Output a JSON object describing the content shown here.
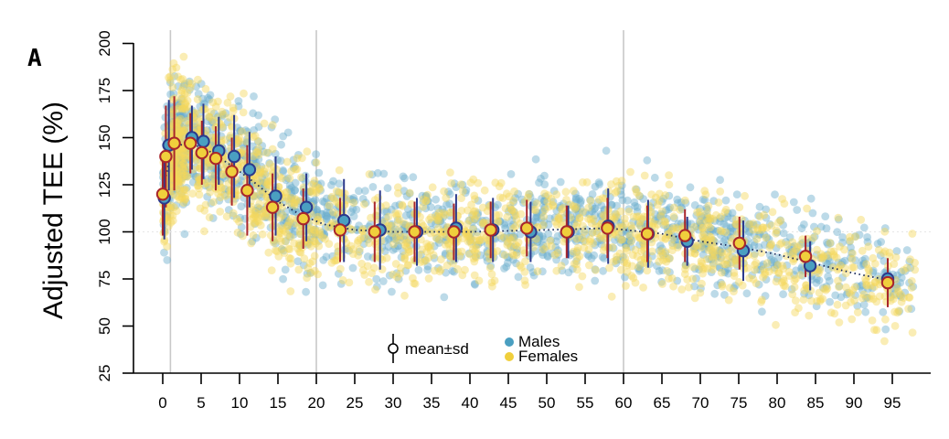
{
  "chart_data": {
    "type": "scatter",
    "panel_label": "A",
    "title": "",
    "xlabel": "",
    "ylabel": "Adjusted TEE (%)",
    "xlim": [
      -1,
      100
    ],
    "ylim": [
      25,
      205
    ],
    "x_ticks": [
      0,
      5,
      10,
      15,
      20,
      25,
      30,
      35,
      40,
      45,
      50,
      55,
      60,
      65,
      70,
      75,
      80,
      85,
      90,
      95
    ],
    "y_ticks": [
      25,
      50,
      75,
      100,
      125,
      150,
      175,
      200
    ],
    "reference_vlines": [
      1,
      20,
      60
    ],
    "reference_hline": 100,
    "legend": {
      "placement": "bottom-center",
      "mean_sd_label": "mean±sd",
      "entries": [
        {
          "name": "Males",
          "color": "#4a9fc1"
        },
        {
          "name": "Females",
          "color": "#f0cf3c"
        }
      ]
    },
    "colors": {
      "male_point": "#6aaecd",
      "female_point": "#f3d65a",
      "male_marker": "#4a9fc1",
      "male_edge": "#2c3a8c",
      "female_marker": "#f0cf3c",
      "female_edge": "#a8262c",
      "trend": "#1a2a5a",
      "ref_line": "#c8c8c8"
    },
    "trend_curve": [
      {
        "x": 0,
        "y": 120
      },
      {
        "x": 1,
        "y": 142
      },
      {
        "x": 3,
        "y": 148
      },
      {
        "x": 6,
        "y": 143
      },
      {
        "x": 9,
        "y": 135
      },
      {
        "x": 12,
        "y": 126
      },
      {
        "x": 15,
        "y": 116
      },
      {
        "x": 18,
        "y": 109
      },
      {
        "x": 21,
        "y": 104
      },
      {
        "x": 25,
        "y": 101
      },
      {
        "x": 30,
        "y": 100
      },
      {
        "x": 40,
        "y": 100
      },
      {
        "x": 50,
        "y": 101
      },
      {
        "x": 58,
        "y": 102
      },
      {
        "x": 65,
        "y": 99
      },
      {
        "x": 70,
        "y": 95
      },
      {
        "x": 75,
        "y": 92
      },
      {
        "x": 80,
        "y": 88
      },
      {
        "x": 85,
        "y": 83
      },
      {
        "x": 90,
        "y": 78
      },
      {
        "x": 95,
        "y": 74
      }
    ],
    "series": [
      {
        "name": "Males",
        "points": [
          {
            "x": 0.2,
            "y": 118,
            "sd": 22
          },
          {
            "x": 0.8,
            "y": 146,
            "sd": 24
          },
          {
            "x": 3.8,
            "y": 150,
            "sd": 17
          },
          {
            "x": 5.3,
            "y": 148,
            "sd": 20
          },
          {
            "x": 7.3,
            "y": 143,
            "sd": 18
          },
          {
            "x": 9.3,
            "y": 140,
            "sd": 22
          },
          {
            "x": 11.3,
            "y": 133,
            "sd": 20
          },
          {
            "x": 14.7,
            "y": 119,
            "sd": 21
          },
          {
            "x": 18.7,
            "y": 113,
            "sd": 18
          },
          {
            "x": 23.6,
            "y": 106,
            "sd": 22
          },
          {
            "x": 28.3,
            "y": 101,
            "sd": 21
          },
          {
            "x": 33.1,
            "y": 100,
            "sd": 18
          },
          {
            "x": 38.2,
            "y": 102,
            "sd": 18
          },
          {
            "x": 43.0,
            "y": 101,
            "sd": 17
          },
          {
            "x": 47.9,
            "y": 100,
            "sd": 16
          },
          {
            "x": 52.8,
            "y": 100,
            "sd": 14
          },
          {
            "x": 58.0,
            "y": 103,
            "sd": 20
          },
          {
            "x": 63.2,
            "y": 99,
            "sd": 18
          },
          {
            "x": 68.3,
            "y": 95,
            "sd": 13
          },
          {
            "x": 75.6,
            "y": 90,
            "sd": 16
          },
          {
            "x": 84.3,
            "y": 82,
            "sd": 13
          },
          {
            "x": 94.4,
            "y": 75,
            "sd": 5
          }
        ]
      },
      {
        "name": "Females",
        "points": [
          {
            "x": 0.0,
            "y": 120,
            "sd": 22
          },
          {
            "x": 0.4,
            "y": 140,
            "sd": 27
          },
          {
            "x": 1.5,
            "y": 147,
            "sd": 25
          },
          {
            "x": 3.6,
            "y": 147,
            "sd": 16
          },
          {
            "x": 5.1,
            "y": 142,
            "sd": 17
          },
          {
            "x": 6.9,
            "y": 139,
            "sd": 17
          },
          {
            "x": 9.0,
            "y": 132,
            "sd": 18
          },
          {
            "x": 11.0,
            "y": 122,
            "sd": 24
          },
          {
            "x": 14.3,
            "y": 113,
            "sd": 18
          },
          {
            "x": 18.3,
            "y": 107,
            "sd": 16
          },
          {
            "x": 23.1,
            "y": 101,
            "sd": 17
          },
          {
            "x": 27.6,
            "y": 100,
            "sd": 16
          },
          {
            "x": 32.8,
            "y": 100,
            "sd": 16
          },
          {
            "x": 37.9,
            "y": 100,
            "sd": 15
          },
          {
            "x": 42.7,
            "y": 101,
            "sd": 15
          },
          {
            "x": 47.4,
            "y": 102,
            "sd": 15
          },
          {
            "x": 52.6,
            "y": 100,
            "sd": 14
          },
          {
            "x": 57.9,
            "y": 102,
            "sd": 16
          },
          {
            "x": 63.1,
            "y": 99,
            "sd": 15
          },
          {
            "x": 68.0,
            "y": 98,
            "sd": 14
          },
          {
            "x": 75.1,
            "y": 94,
            "sd": 14
          },
          {
            "x": 83.7,
            "y": 87,
            "sd": 11
          },
          {
            "x": 94.4,
            "y": 73,
            "sd": 13
          }
        ]
      }
    ]
  }
}
